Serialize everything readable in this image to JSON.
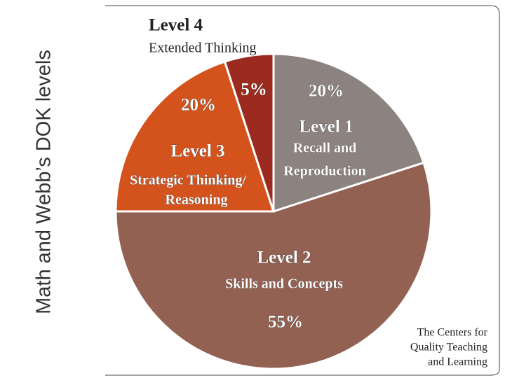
{
  "chart_data": {
    "type": "pie",
    "title": "Math and Webb’s DOK levels",
    "categories": [
      "Level 1",
      "Level 2",
      "Level 3",
      "Level 4"
    ],
    "descriptions": [
      [
        "Recall and",
        "Reproduction"
      ],
      [
        "Skills and Concepts"
      ],
      [
        "Strategic Thinking/",
        "Reasoning"
      ],
      [
        "Extended Thinking"
      ]
    ],
    "values": [
      20,
      55,
      20,
      5
    ],
    "value_labels": [
      "20%",
      "55%",
      "20%",
      "5%"
    ],
    "colors": [
      "#8c8280",
      "#936151",
      "#d4531c",
      "#9c2b1f"
    ]
  },
  "footer": [
    "The Centers for",
    "Quality Teaching",
    "and Learning"
  ]
}
